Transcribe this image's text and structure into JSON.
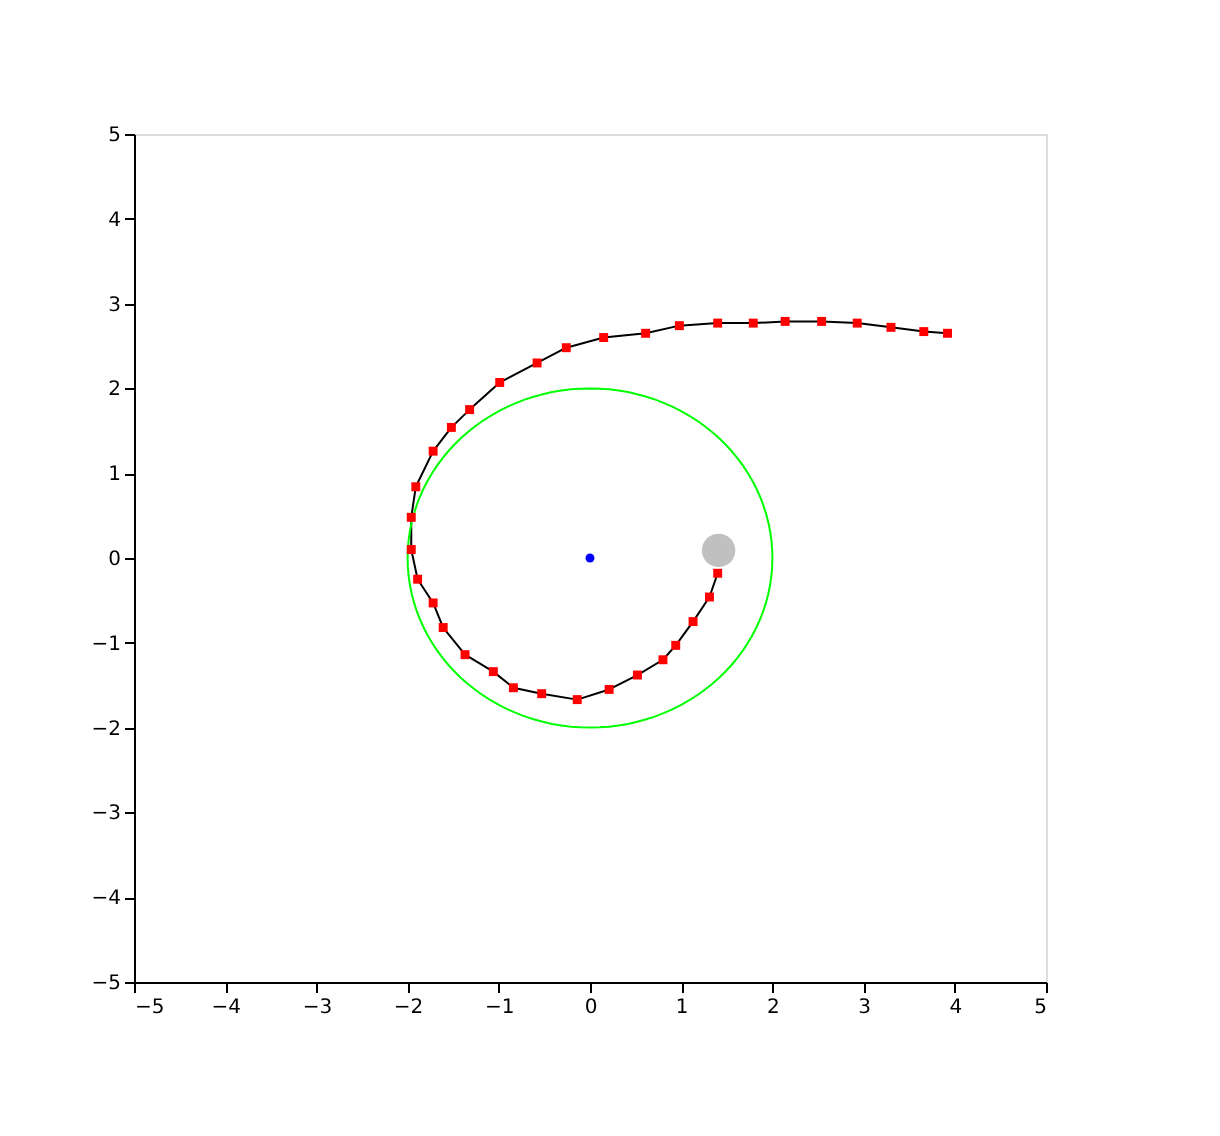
{
  "chart_data": {
    "type": "line",
    "xlim": [
      -5,
      5
    ],
    "ylim": [
      -5,
      5
    ],
    "xticks": [
      -5,
      -4,
      -3,
      -2,
      -1,
      0,
      1,
      2,
      3,
      4,
      5
    ],
    "yticks": [
      -5,
      -4,
      -3,
      -2,
      -1,
      0,
      1,
      2,
      3,
      4,
      5
    ],
    "grid": false,
    "legend": false,
    "series": [
      {
        "color": "#000000",
        "marker": "none",
        "x": [
          1.4,
          1.31,
          1.13,
          0.94,
          0.8,
          0.52,
          0.21,
          -0.14,
          -0.53,
          -0.84,
          -1.06,
          -1.37,
          -1.61,
          -1.72,
          -1.89,
          -1.96,
          -1.96,
          -1.91,
          -1.72,
          -1.52,
          -1.32,
          -0.99,
          -0.58,
          -0.26,
          0.15,
          0.61,
          0.98,
          1.4,
          1.79,
          2.14,
          2.54,
          2.93,
          3.3,
          3.66,
          3.92
        ],
        "values": [
          -0.18,
          -0.46,
          -0.75,
          -1.03,
          -1.2,
          -1.38,
          -1.55,
          -1.67,
          -1.6,
          -1.53,
          -1.34,
          -1.14,
          -0.82,
          -0.53,
          -0.25,
          0.1,
          0.48,
          0.84,
          1.26,
          1.54,
          1.75,
          2.07,
          2.3,
          2.48,
          2.6,
          2.65,
          2.74,
          2.77,
          2.77,
          2.79,
          2.79,
          2.77,
          2.72,
          2.67,
          2.65
        ]
      },
      {
        "type": "scatter",
        "color": "#ff0000",
        "marker": "square",
        "x": [
          1.4,
          1.31,
          1.13,
          0.94,
          0.8,
          0.52,
          0.21,
          -0.14,
          -0.53,
          -0.84,
          -1.06,
          -1.37,
          -1.61,
          -1.72,
          -1.89,
          -1.96,
          -1.96,
          -1.91,
          -1.72,
          -1.52,
          -1.32,
          -0.99,
          -0.58,
          -0.26,
          0.15,
          0.61,
          0.98,
          1.4,
          1.79,
          2.14,
          2.54,
          2.93,
          3.3,
          3.66,
          3.92
        ],
        "values": [
          -0.18,
          -0.46,
          -0.75,
          -1.03,
          -1.2,
          -1.38,
          -1.55,
          -1.67,
          -1.6,
          -1.53,
          -1.34,
          -1.14,
          -0.82,
          -0.53,
          -0.25,
          0.1,
          0.48,
          0.84,
          1.26,
          1.54,
          1.75,
          2.07,
          2.3,
          2.48,
          2.6,
          2.65,
          2.74,
          2.77,
          2.77,
          2.79,
          2.79,
          2.77,
          2.72,
          2.67,
          2.65
        ]
      },
      {
        "type": "scatter",
        "color": "#0000ff",
        "marker": "circle",
        "x": [
          0
        ],
        "values": [
          0
        ]
      },
      {
        "type": "bubble",
        "color": "#c0c0c0",
        "marker": "circle",
        "x": [
          1.41
        ],
        "values": [
          0.09
        ],
        "sizes": [
          1
        ]
      }
    ]
  }
}
